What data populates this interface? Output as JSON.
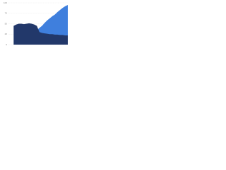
{
  "chart_data": {
    "type": "area",
    "categories": [
      null,
      null,
      null,
      null,
      null,
      null,
      null,
      null,
      null,
      null,
      null,
      null,
      null,
      null,
      null,
      null,
      null,
      null,
      null,
      null,
      null,
      null,
      null,
      null
    ],
    "series": [
      {
        "color": "#3f7fdd",
        "values": [
          null,
          null,
          null,
          null,
          null,
          5,
          10,
          15,
          20,
          25,
          30,
          35,
          40,
          45,
          52,
          58,
          63,
          68,
          72,
          78,
          83,
          88,
          92,
          95
        ]
      },
      {
        "color": "#22386a",
        "values": [
          null,
          null,
          45,
          48,
          50,
          50,
          49,
          50,
          51,
          50,
          48,
          45,
          30,
          28,
          27,
          26,
          25,
          25,
          24,
          24,
          23,
          23,
          22,
          22
        ]
      }
    ],
    "ylim": [
      0,
      100
    ],
    "yticks": [
      0,
      25,
      50,
      75,
      100
    ],
    "grid": true
  }
}
